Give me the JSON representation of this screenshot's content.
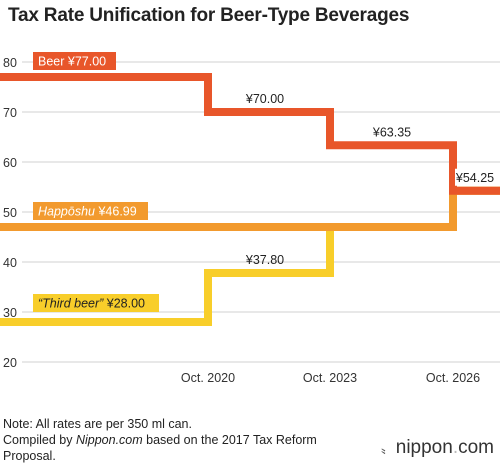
{
  "title": "Tax Rate Unification for Beer-Type Beverages",
  "notes": {
    "line1": "Note: All rates are per 350 ml can.",
    "line2_prefix": "Compiled by ",
    "line2_source": "Nippon.com",
    "line2_suffix": " based on the 2017 Tax Reform",
    "line3": "Proposal."
  },
  "brand": {
    "name": "nippon",
    "dot": ".",
    "tld": "com",
    "mark": "〟"
  },
  "chart_data": {
    "type": "line",
    "step": true,
    "y_ticks": [
      "80",
      "70",
      "60",
      "50",
      "40",
      "30",
      "20"
    ],
    "x_ticks": [
      "Oct. 2020",
      "Oct. 2023",
      "Oct. 2026"
    ],
    "ylim": [
      20,
      80
    ],
    "grid": true,
    "series": [
      {
        "name": "Beer",
        "color": "#e8562a",
        "values": [
          77.0,
          70.0,
          63.35,
          54.25
        ],
        "start_label": "Beer ¥77.00",
        "start_label_italic": false,
        "step_labels": [
          "¥70.00",
          "¥63.35",
          "¥54.25"
        ]
      },
      {
        "name": "Happōshu",
        "color": "#f29a2e",
        "values": [
          46.99,
          46.99,
          46.99,
          54.25
        ],
        "start_label": "Happōshu",
        "start_label_suffix": " ¥46.99",
        "start_label_italic": true,
        "step_labels": []
      },
      {
        "name": "“Third beer”",
        "color": "#f8ce2a",
        "values": [
          28.0,
          37.8,
          46.99,
          54.25
        ],
        "start_label": "“Third beer”",
        "start_label_suffix": " ¥28.00",
        "start_label_italic": true,
        "step_labels": [
          "¥37.80"
        ]
      }
    ]
  }
}
